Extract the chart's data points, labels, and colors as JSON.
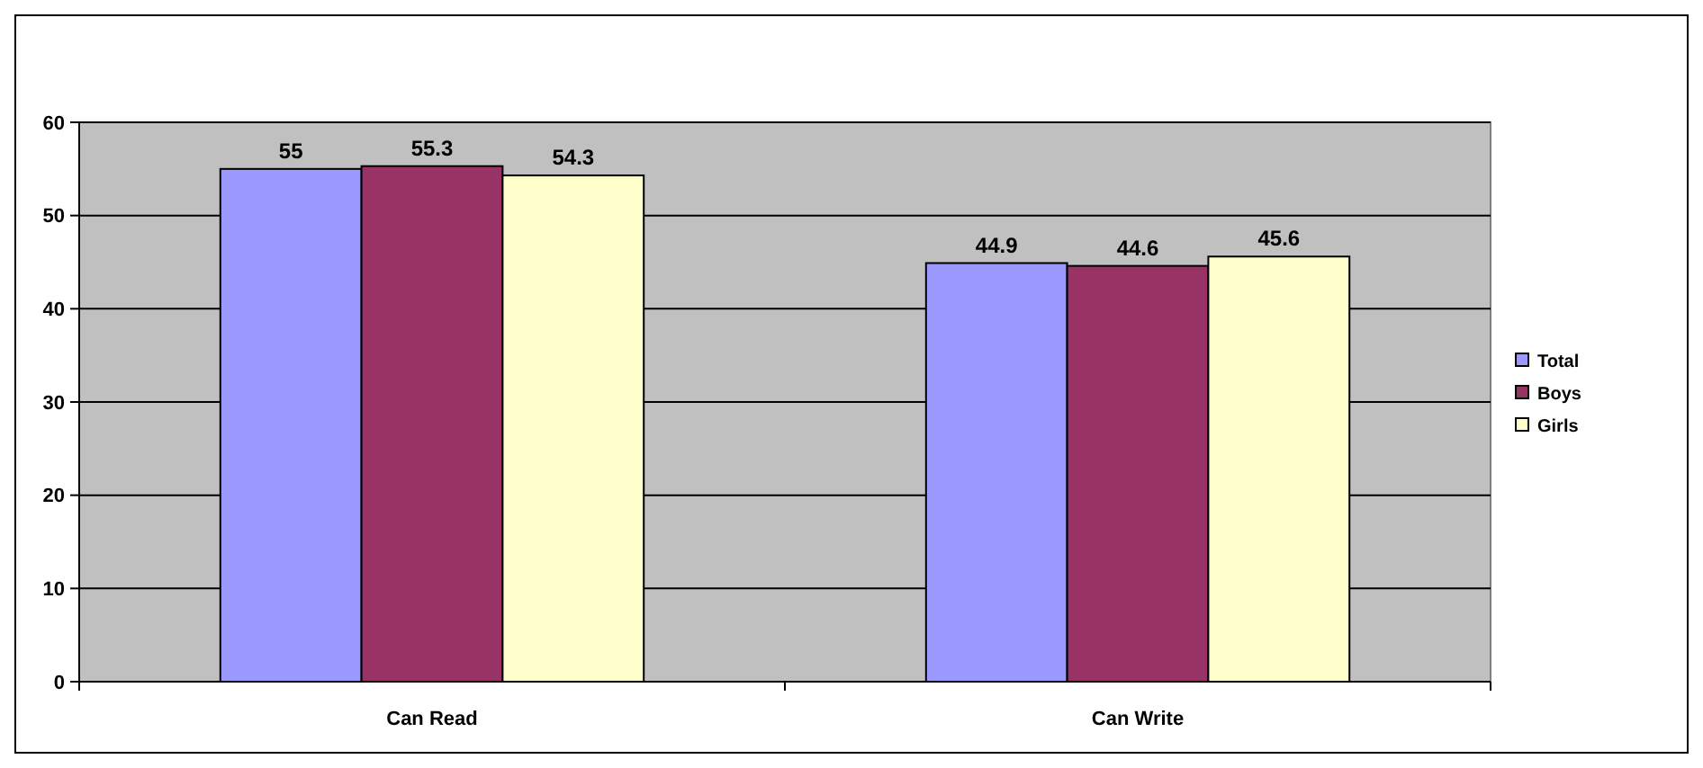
{
  "chart_data": {
    "type": "bar",
    "categories": [
      "Can Read",
      "Can Write"
    ],
    "series": [
      {
        "name": "Total",
        "color": "#9999ff",
        "values": [
          55,
          44.9
        ]
      },
      {
        "name": "Boys",
        "color": "#993366",
        "values": [
          55.3,
          44.6
        ]
      },
      {
        "name": "Girls",
        "color": "#ffffcc",
        "values": [
          54.3,
          45.6
        ]
      }
    ],
    "ylim": [
      0,
      60
    ],
    "yticks": [
      0,
      10,
      20,
      30,
      40,
      50,
      60
    ],
    "grid": "y",
    "legend": "right",
    "data_labels": true
  }
}
